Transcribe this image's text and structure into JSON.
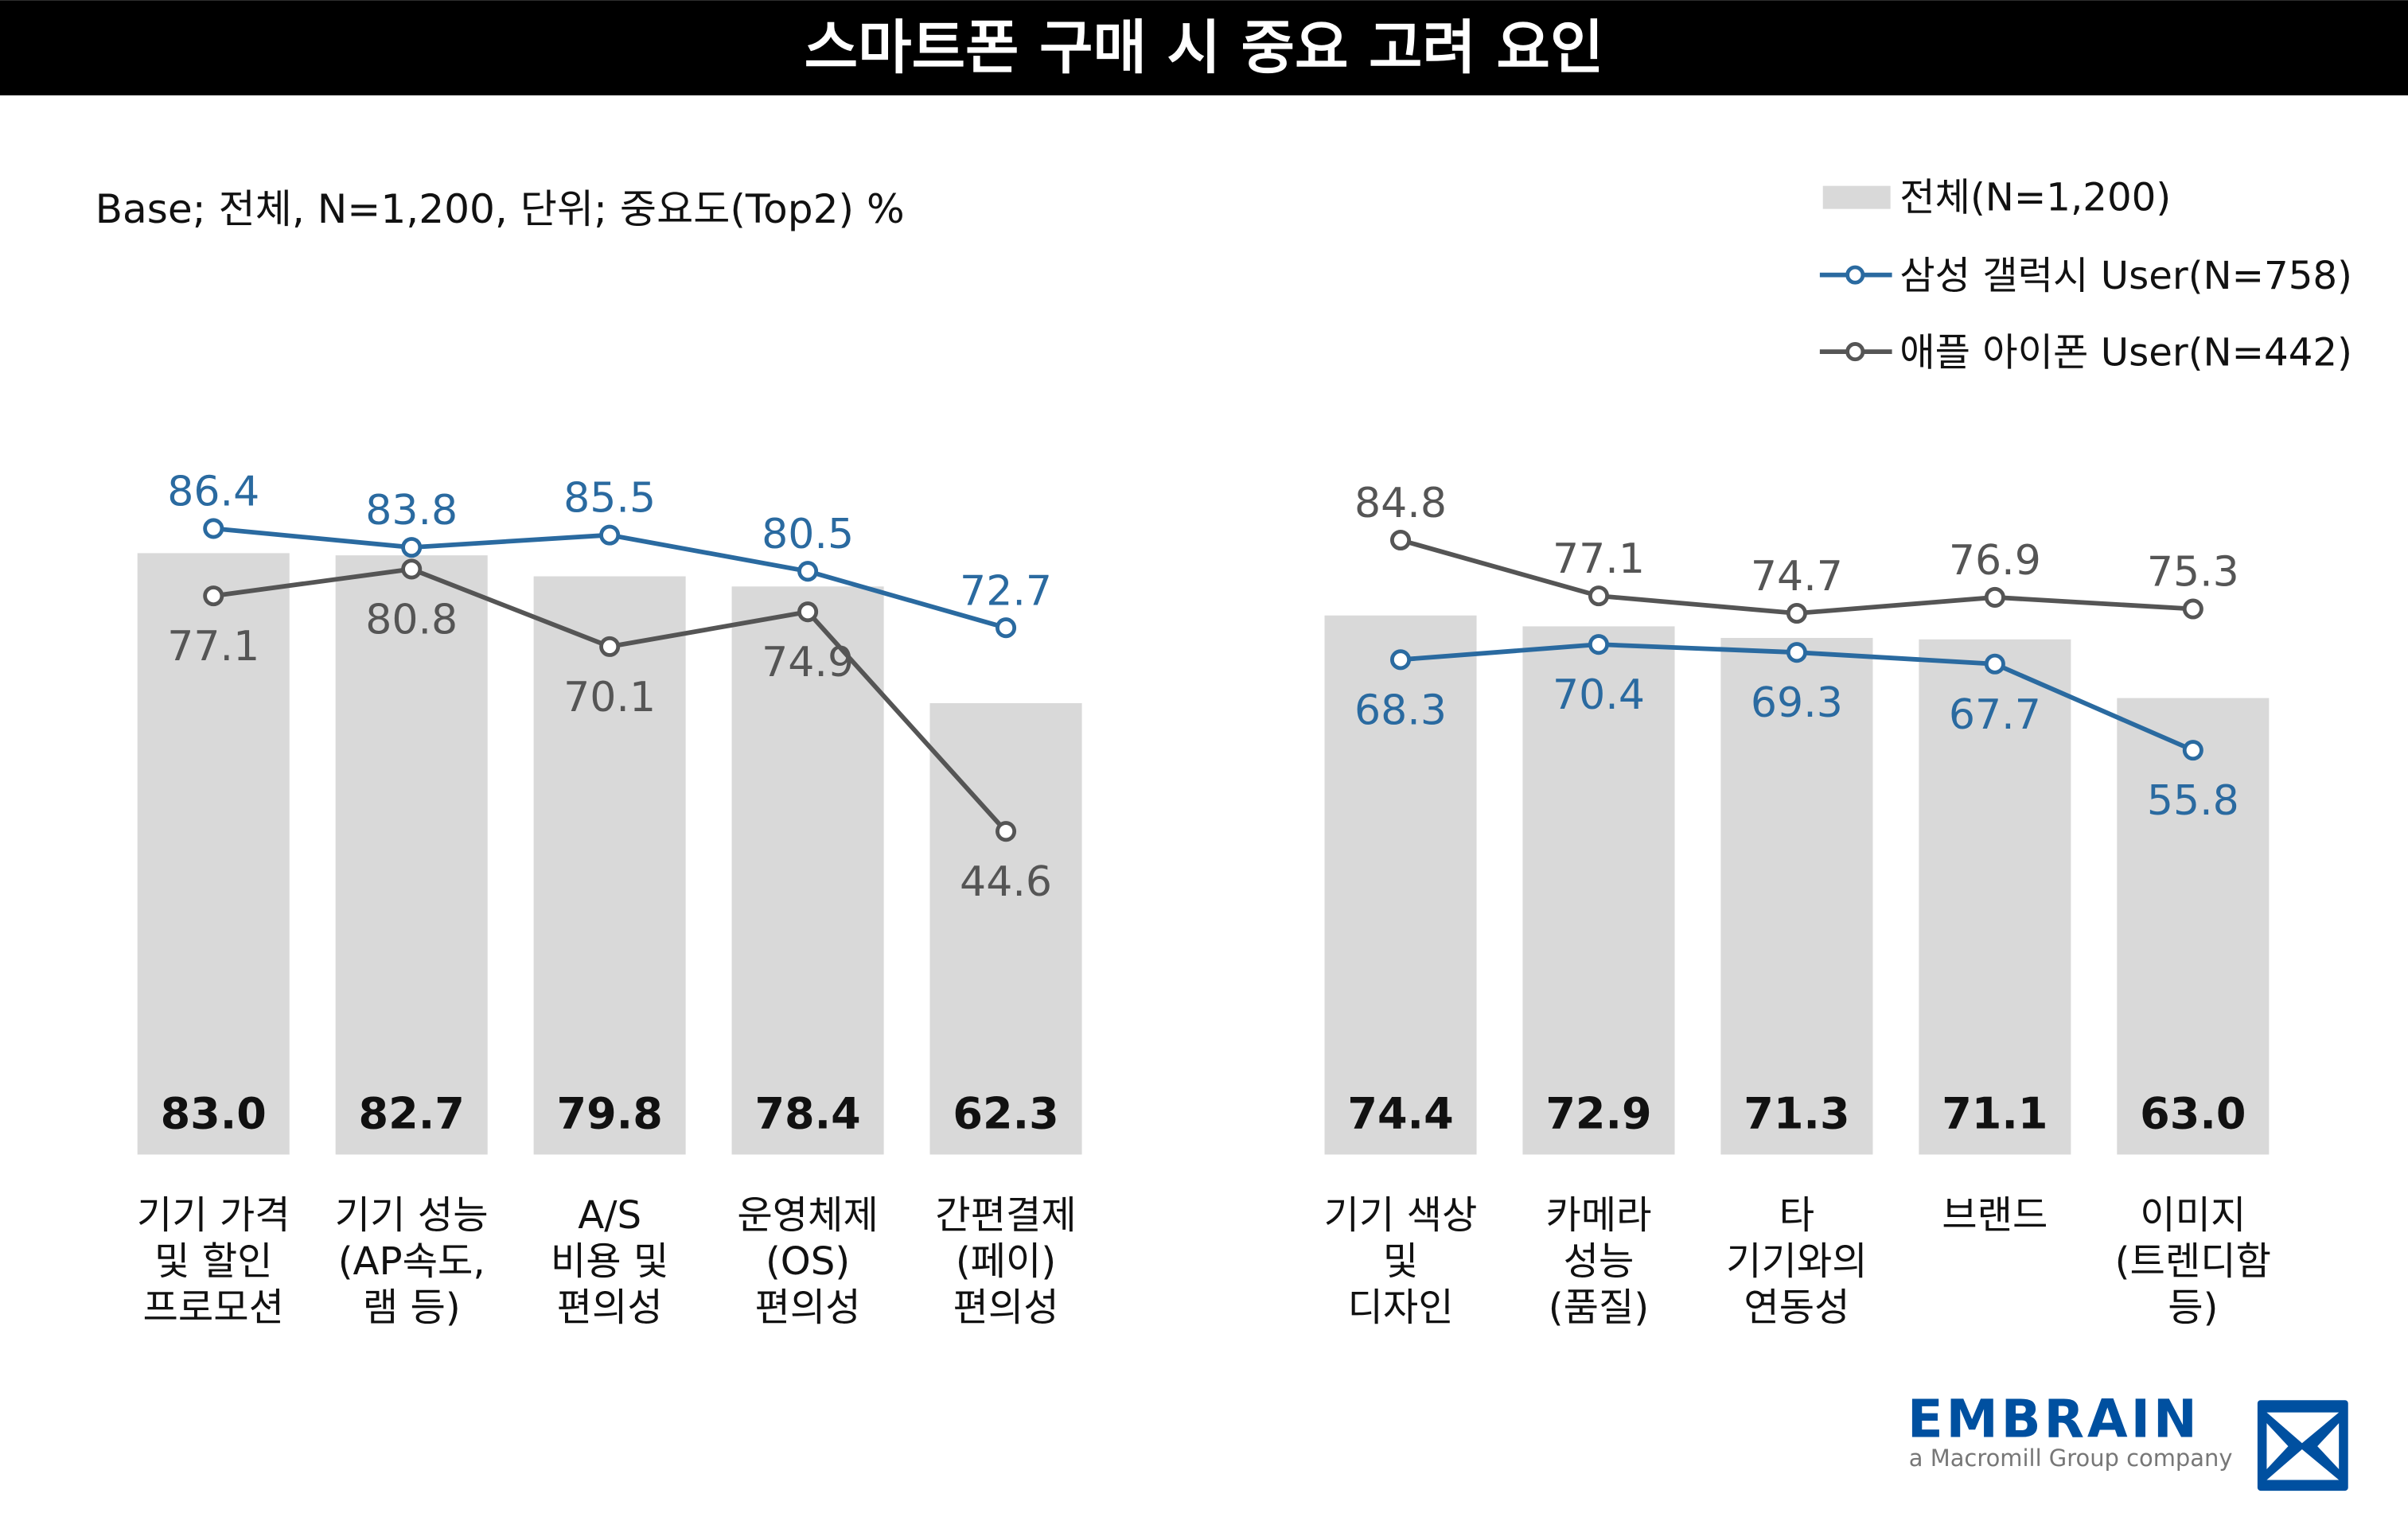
{
  "chart_data": {
    "type": "bar",
    "title": "스마트폰 구매 시 중요 고려 요인",
    "subtitle": "Base; 전체, N=1,200, 단위; 중요도(Top2) %",
    "ylim": [
      0,
      100
    ],
    "legend": "top-right",
    "grid": false,
    "groups": [
      {
        "categories": [
          [
            "기기 가격",
            "및 할인",
            "프로모션"
          ],
          [
            "기기 성능",
            "(AP속도,",
            "램 등)"
          ],
          [
            "A/S",
            "비용 및",
            "편의성"
          ],
          [
            "운영체제",
            "(OS)",
            "편의성"
          ],
          [
            "간편결제",
            "(페이)",
            "편의성"
          ]
        ],
        "total": [
          "83.0",
          "82.7",
          "79.8",
          "78.4",
          "62.3"
        ],
        "samsung": [
          "86.4",
          "83.8",
          "85.5",
          "80.5",
          "72.7"
        ],
        "apple": [
          "77.1",
          "80.8",
          "70.1",
          "74.9",
          "44.6"
        ],
        "samsung_label_pos": "above",
        "apple_label_pos": "below"
      },
      {
        "categories": [
          [
            "기기 색상",
            "및",
            "디자인"
          ],
          [
            "카메라",
            "성능",
            "(품질)"
          ],
          [
            "타",
            "기기와의",
            "연동성"
          ],
          [
            "브랜드"
          ],
          [
            "이미지",
            "(트렌디함",
            "등)"
          ]
        ],
        "total": [
          "74.4",
          "72.9",
          "71.3",
          "71.1",
          "63.0"
        ],
        "samsung": [
          "68.3",
          "70.4",
          "69.3",
          "67.7",
          "55.8"
        ],
        "apple": [
          "84.8",
          "77.1",
          "74.7",
          "76.9",
          "75.3"
        ],
        "samsung_label_pos": "below",
        "apple_label_pos": "above"
      }
    ],
    "series": [
      {
        "name": "전체(N=1,200)",
        "type": "bar",
        "color": "#d9d9d9"
      },
      {
        "name": "삼성 갤럭시 User(N=758)",
        "type": "line",
        "color": "#2a6aa0"
      },
      {
        "name": "애플 아이폰 User(N=442)",
        "type": "line",
        "color": "#555555"
      }
    ]
  },
  "logo": {
    "name": "EMBRAIN",
    "tagline": "a Macromill Group company"
  }
}
